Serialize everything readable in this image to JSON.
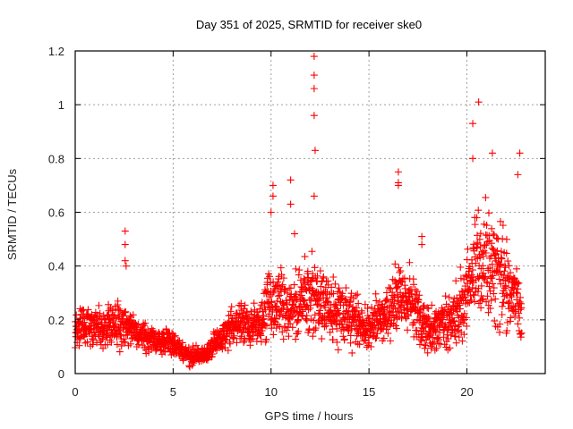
{
  "chart_data": {
    "type": "scatter",
    "title": "Day 351 of 2025, SRMTID for receiver ske0",
    "xlabel": "GPS time / hours",
    "ylabel": "SRMTID / TECUs",
    "xlim": [
      0,
      24
    ],
    "ylim": [
      0,
      1.2
    ],
    "xticks": [
      0,
      5,
      10,
      15,
      20
    ],
    "xtick_labels": [
      "0",
      "5",
      "10",
      "15",
      "20"
    ],
    "yticks": [
      0,
      0.2,
      0.4,
      0.6,
      0.8,
      1,
      1.2
    ],
    "ytick_labels": [
      "0",
      "0.2",
      "0.4",
      "0.6",
      "0.8",
      "1",
      "1.2"
    ],
    "grid": true,
    "marker": "plus",
    "color": "#ff0000",
    "series": [
      {
        "name": "SRMTID",
        "trend": [
          [
            0.0,
            0.17
          ],
          [
            0.5,
            0.18
          ],
          [
            1.0,
            0.17
          ],
          [
            1.5,
            0.17
          ],
          [
            2.0,
            0.18
          ],
          [
            2.5,
            0.19
          ],
          [
            3.0,
            0.16
          ],
          [
            3.5,
            0.14
          ],
          [
            4.0,
            0.13
          ],
          [
            4.5,
            0.12
          ],
          [
            5.0,
            0.11
          ],
          [
            5.5,
            0.08
          ],
          [
            6.0,
            0.06
          ],
          [
            6.5,
            0.07
          ],
          [
            7.0,
            0.1
          ],
          [
            7.5,
            0.14
          ],
          [
            8.0,
            0.18
          ],
          [
            8.5,
            0.2
          ],
          [
            9.0,
            0.17
          ],
          [
            9.5,
            0.19
          ],
          [
            10.0,
            0.28
          ],
          [
            10.5,
            0.26
          ],
          [
            11.0,
            0.24
          ],
          [
            11.5,
            0.27
          ],
          [
            12.0,
            0.3
          ],
          [
            12.5,
            0.27
          ],
          [
            13.0,
            0.24
          ],
          [
            13.5,
            0.22
          ],
          [
            14.0,
            0.22
          ],
          [
            14.5,
            0.19
          ],
          [
            15.0,
            0.18
          ],
          [
            15.5,
            0.2
          ],
          [
            16.0,
            0.22
          ],
          [
            16.5,
            0.3
          ],
          [
            17.0,
            0.28
          ],
          [
            17.5,
            0.22
          ],
          [
            18.0,
            0.16
          ],
          [
            18.5,
            0.17
          ],
          [
            19.0,
            0.2
          ],
          [
            19.5,
            0.22
          ],
          [
            20.0,
            0.3
          ],
          [
            20.5,
            0.42
          ],
          [
            21.0,
            0.4
          ],
          [
            21.5,
            0.38
          ],
          [
            22.0,
            0.36
          ],
          [
            22.5,
            0.26
          ],
          [
            22.8,
            0.22
          ]
        ],
        "outliers": [
          [
            2.55,
            0.53
          ],
          [
            2.55,
            0.48
          ],
          [
            2.55,
            0.42
          ],
          [
            2.6,
            0.4
          ],
          [
            10.1,
            0.7
          ],
          [
            10.1,
            0.66
          ],
          [
            10.0,
            0.6
          ],
          [
            11.0,
            0.72
          ],
          [
            11.0,
            0.63
          ],
          [
            11.2,
            0.52
          ],
          [
            12.2,
            1.18
          ],
          [
            12.2,
            1.11
          ],
          [
            12.2,
            1.06
          ],
          [
            12.2,
            0.96
          ],
          [
            12.25,
            0.83
          ],
          [
            12.2,
            0.66
          ],
          [
            16.5,
            0.75
          ],
          [
            16.5,
            0.71
          ],
          [
            16.5,
            0.7
          ],
          [
            17.7,
            0.51
          ],
          [
            17.7,
            0.48
          ],
          [
            20.3,
            0.93
          ],
          [
            20.6,
            1.01
          ],
          [
            20.3,
            0.8
          ],
          [
            21.3,
            0.82
          ],
          [
            22.7,
            0.82
          ],
          [
            22.6,
            0.74
          ]
        ],
        "scatter_range_note": "dense points between 0.03 and 0.65 around trend, 2.1k+ samples"
      }
    ]
  }
}
